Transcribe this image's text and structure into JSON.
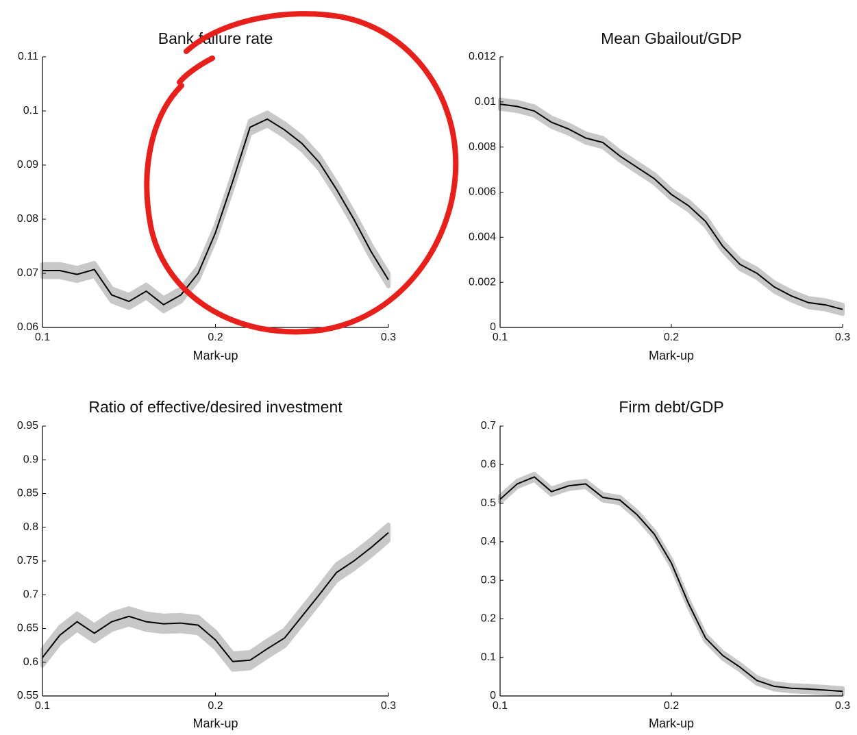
{
  "chart_data": [
    {
      "type": "line",
      "title": "Bank failure rate",
      "xlabel": "Mark-up",
      "x": [
        0.1,
        0.11,
        0.12,
        0.13,
        0.14,
        0.15,
        0.16,
        0.17,
        0.18,
        0.19,
        0.2,
        0.21,
        0.22,
        0.23,
        0.24,
        0.25,
        0.26,
        0.27,
        0.28,
        0.29,
        0.3
      ],
      "values": [
        0.0705,
        0.0705,
        0.0698,
        0.0707,
        0.066,
        0.0648,
        0.0667,
        0.0642,
        0.066,
        0.07,
        0.0775,
        0.087,
        0.097,
        0.0985,
        0.0965,
        0.094,
        0.0905,
        0.0855,
        0.08,
        0.074,
        0.0688
      ],
      "upper": [
        0.0717,
        0.0717,
        0.071,
        0.0719,
        0.0672,
        0.066,
        0.0679,
        0.0654,
        0.0672,
        0.0712,
        0.0787,
        0.0882,
        0.0982,
        0.0997,
        0.0977,
        0.0952,
        0.0917,
        0.0867,
        0.0812,
        0.0752,
        0.07
      ],
      "lower": [
        0.0693,
        0.0693,
        0.0686,
        0.0695,
        0.0648,
        0.0636,
        0.0655,
        0.063,
        0.0648,
        0.0688,
        0.0763,
        0.0858,
        0.0958,
        0.0973,
        0.0953,
        0.0928,
        0.0893,
        0.0843,
        0.0788,
        0.0728,
        0.0676
      ],
      "color": "#000000",
      "band_color": "#c8c8c8",
      "xlim": [
        0.1,
        0.3
      ],
      "xticks": [
        0.1,
        0.2,
        0.3
      ],
      "ylim": [
        0.06,
        0.11
      ],
      "yticks": [
        0.06,
        0.07,
        0.08,
        0.09,
        0.1,
        0.11
      ]
    },
    {
      "type": "line",
      "title": "Mean Gbailout/GDP",
      "xlabel": "Mark-up",
      "x": [
        0.1,
        0.11,
        0.12,
        0.13,
        0.14,
        0.15,
        0.16,
        0.17,
        0.18,
        0.19,
        0.2,
        0.21,
        0.22,
        0.23,
        0.24,
        0.25,
        0.26,
        0.27,
        0.28,
        0.29,
        0.3
      ],
      "values": [
        0.0099,
        0.0098,
        0.0096,
        0.0091,
        0.0088,
        0.0084,
        0.0082,
        0.0076,
        0.0071,
        0.0066,
        0.0059,
        0.0054,
        0.0047,
        0.0036,
        0.0028,
        0.0024,
        0.0018,
        0.0014,
        0.0011,
        0.001,
        0.0008
      ],
      "upper": [
        0.0101,
        0.01,
        0.0098,
        0.0093,
        0.009,
        0.0086,
        0.0084,
        0.0078,
        0.0073,
        0.0068,
        0.0061,
        0.0056,
        0.0049,
        0.0038,
        0.003,
        0.0026,
        0.002,
        0.0016,
        0.0013,
        0.0012,
        0.001
      ],
      "lower": [
        0.0097,
        0.0096,
        0.0094,
        0.0089,
        0.0086,
        0.0082,
        0.008,
        0.0074,
        0.0069,
        0.0064,
        0.0057,
        0.0052,
        0.0045,
        0.0034,
        0.0026,
        0.0022,
        0.0016,
        0.0012,
        0.0009,
        0.0008,
        0.0006
      ],
      "color": "#000000",
      "band_color": "#c8c8c8",
      "xlim": [
        0.1,
        0.3
      ],
      "xticks": [
        0.1,
        0.2,
        0.3
      ],
      "ylim": [
        0,
        0.012
      ],
      "yticks": [
        0,
        0.002,
        0.004,
        0.006,
        0.008,
        0.01,
        0.012
      ]
    },
    {
      "type": "line",
      "title": "Ratio of effective/desired investment",
      "xlabel": "Mark-up",
      "x": [
        0.1,
        0.11,
        0.12,
        0.13,
        0.14,
        0.15,
        0.16,
        0.17,
        0.18,
        0.19,
        0.2,
        0.21,
        0.22,
        0.23,
        0.24,
        0.25,
        0.26,
        0.27,
        0.28,
        0.29,
        0.3
      ],
      "values": [
        0.607,
        0.64,
        0.66,
        0.643,
        0.66,
        0.668,
        0.66,
        0.657,
        0.658,
        0.655,
        0.633,
        0.601,
        0.603,
        0.62,
        0.636,
        0.668,
        0.7,
        0.733,
        0.75,
        0.77,
        0.792
      ],
      "upper": [
        0.619,
        0.652,
        0.672,
        0.655,
        0.672,
        0.68,
        0.672,
        0.669,
        0.67,
        0.667,
        0.645,
        0.613,
        0.615,
        0.632,
        0.648,
        0.68,
        0.712,
        0.745,
        0.762,
        0.782,
        0.804
      ],
      "lower": [
        0.595,
        0.628,
        0.648,
        0.631,
        0.648,
        0.656,
        0.648,
        0.645,
        0.646,
        0.643,
        0.621,
        0.589,
        0.591,
        0.608,
        0.624,
        0.656,
        0.688,
        0.721,
        0.738,
        0.758,
        0.78
      ],
      "color": "#000000",
      "band_color": "#c8c8c8",
      "xlim": [
        0.1,
        0.3
      ],
      "xticks": [
        0.1,
        0.2,
        0.3
      ],
      "ylim": [
        0.55,
        0.95
      ],
      "yticks": [
        0.55,
        0.6,
        0.65,
        0.7,
        0.75,
        0.8,
        0.85,
        0.9,
        0.95
      ]
    },
    {
      "type": "line",
      "title": "Firm debt/GDP",
      "xlabel": "Mark-up",
      "x": [
        0.1,
        0.11,
        0.12,
        0.13,
        0.14,
        0.15,
        0.16,
        0.17,
        0.18,
        0.19,
        0.2,
        0.21,
        0.22,
        0.23,
        0.24,
        0.25,
        0.26,
        0.27,
        0.28,
        0.29,
        0.3
      ],
      "values": [
        0.51,
        0.55,
        0.568,
        0.53,
        0.545,
        0.55,
        0.515,
        0.508,
        0.47,
        0.42,
        0.345,
        0.24,
        0.15,
        0.105,
        0.075,
        0.04,
        0.025,
        0.02,
        0.018,
        0.015,
        0.012
      ],
      "upper": [
        0.518,
        0.558,
        0.576,
        0.538,
        0.553,
        0.558,
        0.523,
        0.516,
        0.478,
        0.428,
        0.353,
        0.248,
        0.158,
        0.113,
        0.083,
        0.048,
        0.033,
        0.028,
        0.026,
        0.023,
        0.02
      ],
      "lower": [
        0.502,
        0.542,
        0.56,
        0.522,
        0.537,
        0.542,
        0.507,
        0.5,
        0.462,
        0.412,
        0.337,
        0.232,
        0.142,
        0.097,
        0.067,
        0.032,
        0.017,
        0.012,
        0.01,
        0.007,
        0.004
      ],
      "color": "#000000",
      "band_color": "#c8c8c8",
      "xlim": [
        0.1,
        0.3
      ],
      "xticks": [
        0.1,
        0.2,
        0.3
      ],
      "ylim": [
        0,
        0.7
      ],
      "yticks": [
        0,
        0.1,
        0.2,
        0.3,
        0.4,
        0.5,
        0.6,
        0.7
      ]
    }
  ]
}
